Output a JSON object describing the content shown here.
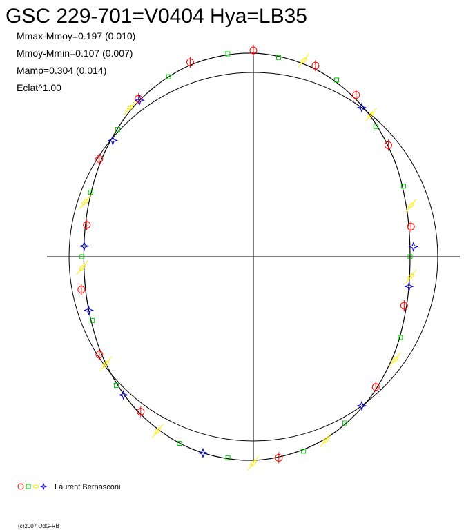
{
  "chart_data": {
    "type": "polar",
    "title": "GSC 229-701=V0404 Hya=LB35",
    "stats": [
      "Mmax-Mmoy=0.197 (0.010)",
      "Mmoy-Mmin=0.107 (0.007)",
      "Mamp=0.304 (0.014)",
      "Eclat^1.00"
    ],
    "legend_label": "Laurent Bernasconi",
    "footer": "(c)2007 OdG-RB",
    "rlim": [
      0,
      1.12
    ],
    "reference_radius": 1,
    "curve": {
      "color": "#000000",
      "x": [
        0,
        0.05,
        0.1,
        0.15,
        0.2,
        0.25,
        0.3,
        0.35,
        0.4,
        0.45,
        0.5,
        0.55,
        0.6,
        0.65,
        0.7,
        0.75,
        0.8,
        0.85,
        0.9,
        0.95
      ],
      "values": [
        1.105,
        1.073,
        1.008,
        0.933,
        0.873,
        0.85,
        0.873,
        0.933,
        1.008,
        1.073,
        1.105,
        1.095,
        1.05,
        0.989,
        0.939,
        0.92,
        0.939,
        0.989,
        1.05,
        1.095
      ]
    },
    "series": [
      {
        "color": "#ff0000",
        "marker": "circle",
        "x": [
          0.0,
          0.05,
          0.09,
          0.14,
          0.22,
          0.3,
          0.38,
          0.48,
          0.6,
          0.66,
          0.72,
          0.78,
          0.84,
          0.9,
          0.95
        ],
        "values": [
          1.12,
          1.09,
          1.04,
          0.95,
          0.87,
          0.86,
          0.97,
          1.1,
          1.04,
          0.99,
          0.95,
          0.92,
          0.99,
          1.06,
          1.11
        ]
      },
      {
        "color": "#00cc00",
        "marker": "square",
        "x": [
          0.02,
          0.07,
          0.12,
          0.18,
          0.25,
          0.33,
          0.42,
          0.46,
          0.52,
          0.56,
          0.63,
          0.69,
          0.75,
          0.81,
          0.87,
          0.93,
          0.98
        ],
        "values": [
          1.09,
          1.06,
          0.97,
          0.9,
          0.85,
          0.91,
          1.03,
          1.09,
          1.1,
          1.09,
          1.02,
          0.94,
          0.93,
          0.95,
          1.01,
          1.08,
          1.11
        ]
      },
      {
        "color": "#ffee00",
        "marker": "slash",
        "x": [
          0.04,
          0.11,
          0.2,
          0.27,
          0.35,
          0.44,
          0.5,
          0.58,
          0.65,
          0.74,
          0.8,
          0.89
        ],
        "values": [
          1.1,
          1.0,
          0.9,
          0.86,
          0.95,
          1.07,
          1.12,
          1.08,
          0.99,
          0.93,
          0.96,
          1.05
        ]
      },
      {
        "color": "#0000cc",
        "marker": "star",
        "x": [
          0.1,
          0.24,
          0.28,
          0.4,
          0.54,
          0.62,
          0.7,
          0.76,
          0.86,
          0.9
        ],
        "values": [
          1.0,
          0.87,
          0.86,
          1.0,
          1.1,
          1.03,
          0.94,
          0.92,
          0.99,
          1.05
        ]
      }
    ]
  }
}
